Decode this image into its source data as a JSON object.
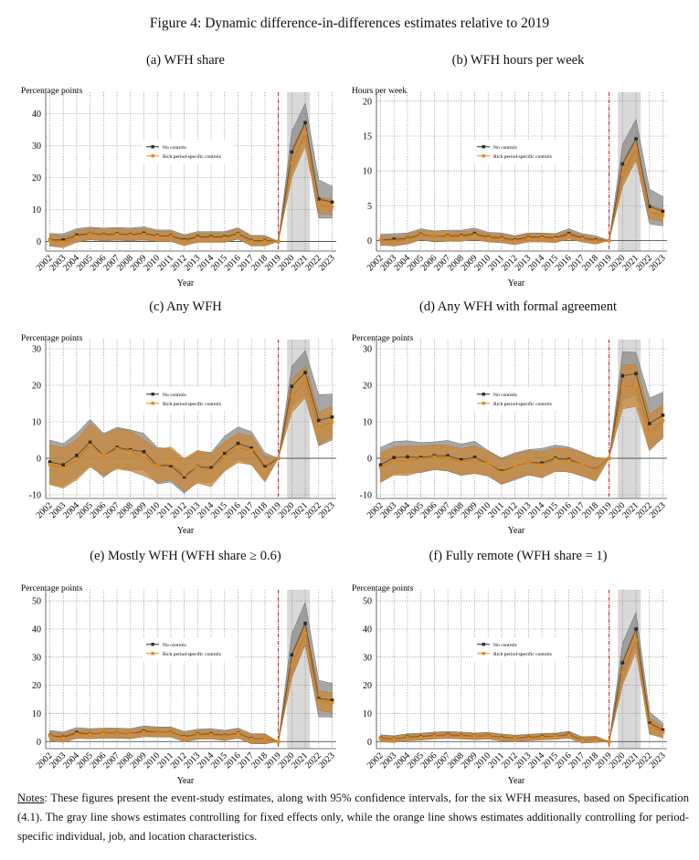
{
  "figure_title": "Figure 4: Dynamic difference-in-differences estimates relative to 2019",
  "legend": {
    "no_controls": "No controls",
    "rich": "Rich period-specific controls"
  },
  "colors": {
    "no_controls_line": "#2b2b2b",
    "no_controls_band": "#8a8a8a",
    "rich_line": "#e28a1c",
    "rich_band": "#c98a3e",
    "event_line": "#c0141a",
    "shade": "#d9d9d9"
  },
  "notes": {
    "label": "Notes",
    "text": ": These figures present the event-study estimates, along with 95% confidence intervals, for the six WFH measures, based on Specification (4.1). The gray line shows estimates controlling for fixed effects only, while the orange line shows estimates additionally controlling for period-specific individual, job, and location characteristics."
  },
  "chart_data": [
    {
      "type": "line",
      "title": "(a) WFH share",
      "ylabel": "Percentage points",
      "xlabel": "Year",
      "ylim": [
        -3,
        45
      ],
      "yticks": [
        0,
        10,
        20,
        30,
        40
      ],
      "x": [
        2002,
        2003,
        2004,
        2005,
        2006,
        2007,
        2008,
        2009,
        2010,
        2011,
        2012,
        2013,
        2014,
        2015,
        2016,
        2017,
        2018,
        2019,
        2020,
        2021,
        2022,
        2023
      ],
      "event_year": 2019,
      "shaded_years": [
        2020,
        2021
      ],
      "series": [
        {
          "name": "No controls",
          "values": [
            0.5,
            0.5,
            2.0,
            2.5,
            2.2,
            2.4,
            2.2,
            2.6,
            1.8,
            1.8,
            0.5,
            1.5,
            1.5,
            1.5,
            2.5,
            0.3,
            0.3,
            0,
            28,
            37.2,
            13.3,
            12.3
          ],
          "ci_half": [
            2,
            1.9,
            2,
            2,
            2,
            2,
            2,
            2,
            1.8,
            1.8,
            1.6,
            1.6,
            1.6,
            1.6,
            1.8,
            1.6,
            1.6,
            0,
            6.5,
            6,
            6,
            5
          ]
        },
        {
          "name": "Rich period-specific controls",
          "values": [
            0.4,
            -0.2,
            1.5,
            2.4,
            2.0,
            2.2,
            2.0,
            2.2,
            1.6,
            1.6,
            0.2,
            1.2,
            1.2,
            1.2,
            2.3,
            0.1,
            0.1,
            0,
            24.5,
            33.8,
            11.3,
            10.8
          ],
          "ci_half": [
            1.8,
            1.8,
            1.8,
            1.8,
            1.8,
            1.8,
            1.8,
            1.8,
            1.6,
            1.6,
            1.5,
            1.5,
            1.5,
            1.5,
            1.6,
            1.5,
            1.5,
            0,
            4.5,
            4,
            2.5,
            2.5
          ]
        }
      ]
    },
    {
      "type": "line",
      "title": "(b) WFH hours per week",
      "ylabel": "Hours per week",
      "xlabel": "Year",
      "ylim": [
        -1.5,
        20.5
      ],
      "yticks": [
        0,
        5,
        10,
        15,
        20
      ],
      "x": [
        2002,
        2003,
        2004,
        2005,
        2006,
        2007,
        2008,
        2009,
        2010,
        2011,
        2012,
        2013,
        2014,
        2015,
        2016,
        2017,
        2018,
        2019,
        2020,
        2021,
        2022,
        2023
      ],
      "event_year": 2019,
      "shaded_years": [
        2020,
        2021
      ],
      "series": [
        {
          "name": "No controls",
          "values": [
            0.1,
            0.2,
            0.3,
            0.9,
            0.6,
            0.7,
            0.7,
            1.0,
            0.5,
            0.4,
            0.1,
            0.5,
            0.5,
            0.4,
            1.0,
            0.4,
            0.1,
            0,
            11,
            14.6,
            4.9,
            4.2
          ],
          "ci_half": [
            0.8,
            0.8,
            0.8,
            0.8,
            0.8,
            0.8,
            0.8,
            0.8,
            0.7,
            0.7,
            0.6,
            0.6,
            0.6,
            0.6,
            0.7,
            0.6,
            0.6,
            0,
            2.8,
            2.8,
            2.5,
            2.1
          ]
        },
        {
          "name": "Rich period-specific controls",
          "values": [
            0.1,
            -0.1,
            0.2,
            0.8,
            0.6,
            0.6,
            0.6,
            0.8,
            0.4,
            0.3,
            0,
            0.4,
            0.4,
            0.3,
            0.8,
            0.3,
            0,
            0,
            9.5,
            13.1,
            4.1,
            3.6
          ],
          "ci_half": [
            0.7,
            0.7,
            0.7,
            0.7,
            0.7,
            0.7,
            0.7,
            0.7,
            0.6,
            0.6,
            0.6,
            0.6,
            0.6,
            0.6,
            0.6,
            0.5,
            0.5,
            0,
            1.8,
            1.6,
            1.0,
            0.9
          ]
        }
      ]
    },
    {
      "type": "line",
      "title": "(c) Any WFH",
      "ylabel": "Percentage points",
      "xlabel": "Year",
      "ylim": [
        -11,
        31
      ],
      "yticks": [
        -10,
        0,
        10,
        20,
        30
      ],
      "x": [
        2002,
        2003,
        2004,
        2005,
        2006,
        2007,
        2008,
        2009,
        2010,
        2011,
        2012,
        2013,
        2014,
        2015,
        2016,
        2017,
        2018,
        2019,
        2020,
        2021,
        2022,
        2023
      ],
      "event_year": 2019,
      "shaded_years": [
        2020,
        2021
      ],
      "series": [
        {
          "name": "No controls",
          "values": [
            -1,
            -1.8,
            0.8,
            4.4,
            0.8,
            3.0,
            2.3,
            1.8,
            -2,
            -2,
            -5.1,
            -2.2,
            -2.6,
            1.3,
            4.1,
            2.8,
            -2.3,
            0,
            19.7,
            23.5,
            10.4,
            11.3
          ],
          "ci_half": [
            6,
            5.8,
            6,
            6.3,
            6,
            5.5,
            5.5,
            5,
            5,
            4.5,
            4.5,
            4.2,
            4.2,
            4.8,
            4.5,
            4.5,
            3.8,
            0,
            5.5,
            6,
            7,
            6.3
          ]
        },
        {
          "name": "Rich period-specific controls",
          "values": [
            -1.7,
            -2.7,
            -0.4,
            3.6,
            0.8,
            2.6,
            2.0,
            0.2,
            -2,
            -1.4,
            -4.5,
            -2.3,
            -3.3,
            0.5,
            2.8,
            2.2,
            -3,
            0,
            17,
            21,
            8.1,
            10
          ],
          "ci_half": [
            5.5,
            5.5,
            5.5,
            6,
            5.5,
            5.5,
            5.5,
            5,
            4.5,
            4.5,
            4.5,
            4.5,
            4.5,
            4,
            4,
            4,
            3.5,
            0,
            4.5,
            4.5,
            4.5,
            4.2
          ]
        }
      ]
    },
    {
      "type": "line",
      "title": "(d) Any WFH with formal agreement",
      "ylabel": "Percentage points",
      "xlabel": "Year",
      "ylim": [
        -11,
        31
      ],
      "yticks": [
        -10,
        0,
        10,
        20,
        30
      ],
      "x": [
        2002,
        2003,
        2004,
        2005,
        2006,
        2007,
        2008,
        2009,
        2010,
        2011,
        2012,
        2013,
        2014,
        2015,
        2016,
        2017,
        2018,
        2019,
        2020,
        2021,
        2022,
        2023
      ],
      "event_year": 2019,
      "shaded_years": [
        2020,
        2021
      ],
      "series": [
        {
          "name": "No controls",
          "values": [
            -1.8,
            0.2,
            0.4,
            0.2,
            0.7,
            0.7,
            -0.4,
            0.3,
            -1.4,
            -3.5,
            -2.2,
            -1.1,
            -1.3,
            0,
            -0.3,
            -1.6,
            -3,
            0,
            22.6,
            23.2,
            9.5,
            11.8
          ],
          "ci_half": [
            4.8,
            4.4,
            4.4,
            4.1,
            3.8,
            4.2,
            4.3,
            4.4,
            3.5,
            3.6,
            3.7,
            3.5,
            4,
            3.6,
            3.4,
            3.3,
            3.2,
            0,
            6.6,
            5.8,
            7,
            6.3
          ]
        },
        {
          "name": "Rich period-specific controls",
          "values": [
            -2.6,
            -0.7,
            -0.7,
            -0.2,
            0.4,
            0.1,
            -1.0,
            -0.4,
            -1.4,
            -3.8,
            -2.2,
            -1.1,
            -1.8,
            -0.3,
            -0.6,
            -1.6,
            -3.1,
            0,
            19.5,
            20,
            7,
            10.3
          ],
          "ci_half": [
            4,
            3.9,
            4,
            3.5,
            3.3,
            3.5,
            3.6,
            3.8,
            3.4,
            3.4,
            3.3,
            3.2,
            3.6,
            3.2,
            3.2,
            3.2,
            3.2,
            0,
            6,
            5.8,
            5,
            4.5
          ]
        }
      ]
    },
    {
      "type": "line",
      "title": "(e) Mostly WFH (WFH share ≥ 0.6)",
      "ylabel": "Percentage points",
      "xlabel": "Year",
      "ylim": [
        -2.5,
        52
      ],
      "yticks": [
        0,
        10,
        20,
        30,
        40,
        50
      ],
      "x": [
        2002,
        2003,
        2004,
        2005,
        2006,
        2007,
        2008,
        2009,
        2010,
        2011,
        2012,
        2013,
        2014,
        2015,
        2016,
        2017,
        2018,
        2019,
        2020,
        2021,
        2022,
        2023
      ],
      "event_year": 2019,
      "shaded_years": [
        2020,
        2021
      ],
      "series": [
        {
          "name": "No controls",
          "values": [
            2.2,
            1.6,
            3.2,
            2.8,
            3.0,
            3.0,
            2.8,
            3.7,
            3.4,
            3.4,
            1.8,
            2.6,
            2.8,
            2.2,
            3.0,
            1.0,
            1.0,
            0,
            30.8,
            42,
            15.3,
            14.7
          ],
          "ci_half": [
            1.8,
            1.8,
            1.8,
            1.8,
            1.8,
            1.8,
            1.8,
            1.9,
            1.8,
            1.8,
            1.8,
            1.8,
            1.8,
            1.8,
            1.8,
            1.8,
            1.8,
            0,
            7.5,
            7.5,
            6.5,
            6
          ]
        },
        {
          "name": "Rich period-specific controls",
          "values": [
            2.0,
            1.3,
            2.7,
            2.6,
            2.9,
            2.9,
            2.7,
            3.4,
            3.3,
            3.3,
            1.6,
            2.4,
            2.5,
            2.0,
            2.8,
            0.8,
            1.0,
            0,
            27,
            38.5,
            14.6,
            13.8
          ],
          "ci_half": [
            1.6,
            1.6,
            1.6,
            1.6,
            1.6,
            1.6,
            1.6,
            1.7,
            1.6,
            1.6,
            1.6,
            1.6,
            1.6,
            1.6,
            1.6,
            1.6,
            1.6,
            0,
            4.5,
            4,
            3.5,
            3.5
          ]
        }
      ]
    },
    {
      "type": "line",
      "title": "(f) Fully remote (WFH share = 1)",
      "ylabel": "Percentage points",
      "xlabel": "Year",
      "ylim": [
        -2.5,
        52
      ],
      "yticks": [
        0,
        10,
        20,
        30,
        40,
        50
      ],
      "x": [
        2002,
        2003,
        2004,
        2005,
        2006,
        2007,
        2008,
        2009,
        2010,
        2011,
        2012,
        2013,
        2014,
        2015,
        2016,
        2017,
        2018,
        2019,
        2020,
        2021,
        2022,
        2023
      ],
      "event_year": 2019,
      "shaded_years": [
        2020,
        2021
      ],
      "series": [
        {
          "name": "No controls",
          "values": [
            1.2,
            0.9,
            1.6,
            1.8,
            2.2,
            2.4,
            2.2,
            1.9,
            2.1,
            1.5,
            1.2,
            1.5,
            1.8,
            1.9,
            2.5,
            0.6,
            0.8,
            0,
            28,
            40,
            6.6,
            4.1
          ],
          "ci_half": [
            1.2,
            1.2,
            1.2,
            1.2,
            1.2,
            1.2,
            1.2,
            1.2,
            1.2,
            1.2,
            1.1,
            1.1,
            1.1,
            1.1,
            1.2,
            1.1,
            1.1,
            0,
            7,
            6,
            4,
            2.5
          ]
        },
        {
          "name": "Rich period-specific controls",
          "values": [
            1.0,
            0.8,
            1.4,
            1.6,
            2.0,
            2.2,
            2.0,
            1.8,
            2.0,
            1.3,
            1.1,
            1.3,
            1.6,
            1.8,
            2.3,
            0.5,
            0.7,
            0,
            24.5,
            36,
            5.7,
            3.3
          ],
          "ci_half": [
            1.1,
            1.1,
            1.1,
            1.1,
            1.1,
            1.1,
            1.1,
            1.1,
            1.1,
            1.1,
            1.0,
            1.0,
            1.0,
            1.0,
            1.1,
            1.0,
            1.0,
            0,
            4.5,
            4,
            3,
            2
          ]
        }
      ]
    }
  ]
}
